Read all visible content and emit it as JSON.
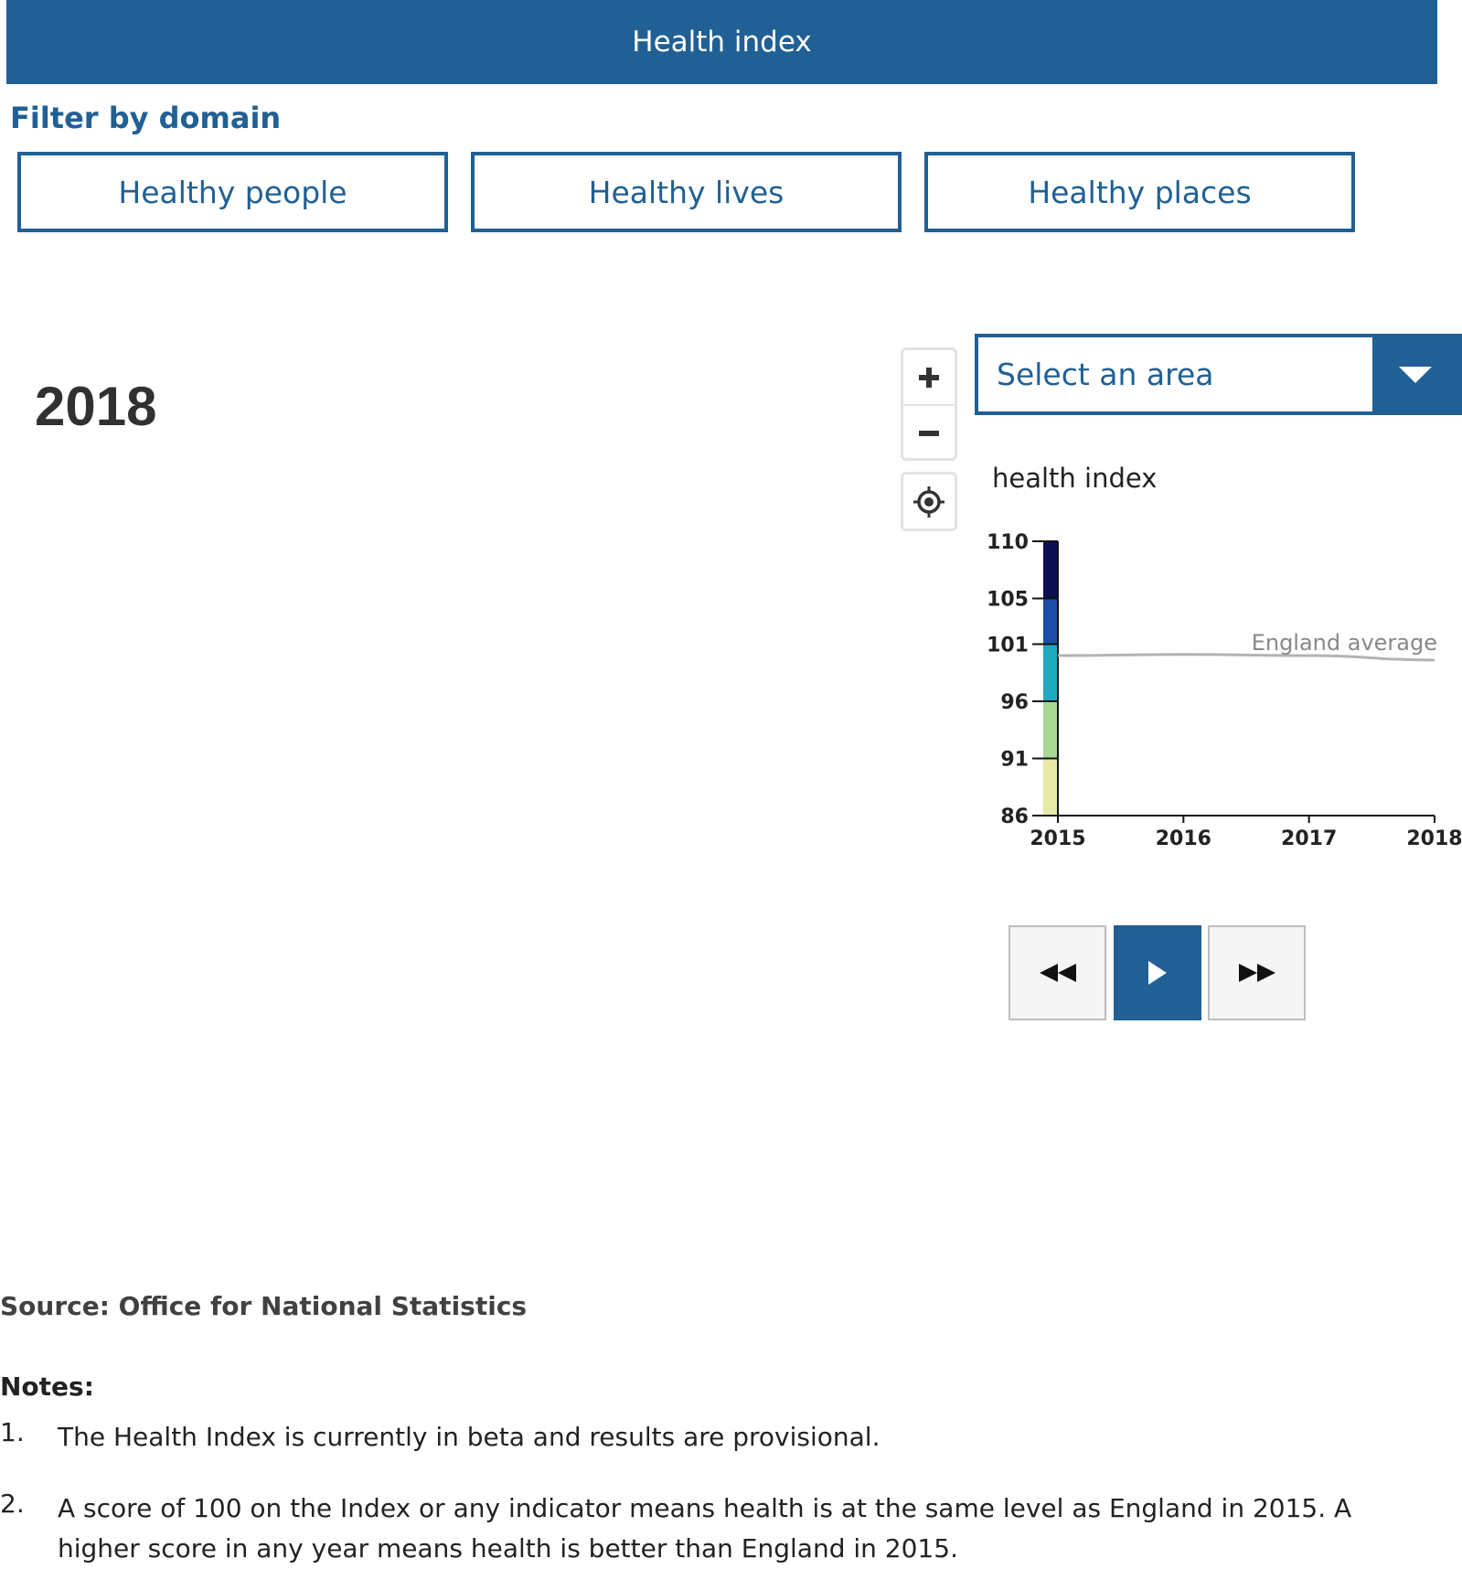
{
  "header": {
    "title": "Health index"
  },
  "filter": {
    "heading": "Filter by domain",
    "buttons": [
      "Healthy people",
      "Healthy lives",
      "Healthy places"
    ]
  },
  "current_year": "2018",
  "map_controls": {
    "zoom_in": "zoom-in",
    "zoom_out": "zoom-out",
    "locate": "locate"
  },
  "area_select": {
    "placeholder": "Select an area"
  },
  "chart_data": {
    "type": "line",
    "title": "health index",
    "x": [
      2015,
      2016,
      2017,
      2018
    ],
    "xticks": [
      "2015",
      "2016",
      "2017",
      "2018"
    ],
    "yticks": [
      "86",
      "91",
      "96",
      "101",
      "105",
      "110"
    ],
    "ylim": [
      86,
      110
    ],
    "series": [
      {
        "name": "England average",
        "values": [
          100.0,
          100.1,
          100.0,
          99.6
        ],
        "color": "#b3b3b3"
      }
    ],
    "legend_scale": [
      {
        "from": 86,
        "to": 96,
        "color": "#e5eba5"
      },
      {
        "from": 86,
        "to": 96,
        "color": "#a8d895"
      },
      {
        "from": 96,
        "to": 101,
        "color": "#1fa9bf"
      },
      {
        "from": 101,
        "to": 105,
        "color": "#1c4ea7"
      },
      {
        "from": 105,
        "to": 110,
        "color": "#0b0f4f"
      }
    ]
  },
  "playback": {
    "back": "rewind",
    "play": "play",
    "forward": "fast-forward"
  },
  "source": "Source: Office for National Statistics",
  "notes": {
    "heading": "Notes:",
    "items": [
      {
        "num": "1.",
        "text": "The Health Index is currently in beta and results are provisional."
      },
      {
        "num": "2.",
        "text": "A score of 100 on the Index or any indicator means health is at the same level as England in 2015. A higher score in any year means health is better than England in 2015."
      }
    ]
  },
  "colors": {
    "accent": "#206095",
    "text_dark": "#323132"
  }
}
